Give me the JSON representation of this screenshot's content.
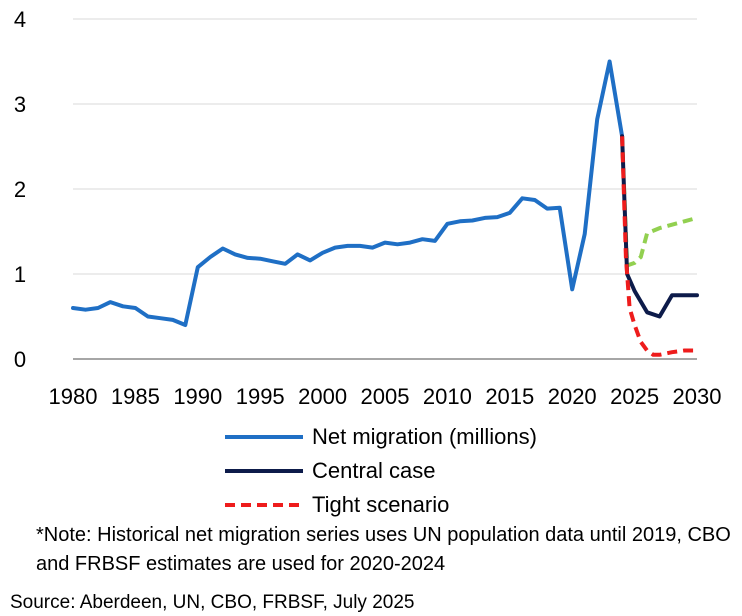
{
  "chart_data": {
    "type": "line",
    "title": "",
    "xlabel": "",
    "ylabel": "",
    "xlim": [
      1980,
      2030
    ],
    "ylim": [
      0,
      4
    ],
    "x_ticks": [
      "1980",
      "1985",
      "1990",
      "1995",
      "2000",
      "2005",
      "2010",
      "2015",
      "2020",
      "2025",
      "2030"
    ],
    "y_ticks": [
      "0",
      "1",
      "2",
      "3",
      "4"
    ],
    "grid": true,
    "legend_position": "bottom",
    "series": [
      {
        "name": "Net migration (millions)",
        "color": "#1F6FC5",
        "style": "solid",
        "x": [
          1980,
          1981,
          1982,
          1983,
          1984,
          1985,
          1986,
          1987,
          1988,
          1989,
          1990,
          1991,
          1992,
          1993,
          1994,
          1995,
          1996,
          1997,
          1998,
          1999,
          2000,
          2001,
          2002,
          2003,
          2004,
          2005,
          2006,
          2007,
          2008,
          2009,
          2010,
          2011,
          2012,
          2013,
          2014,
          2015,
          2016,
          2017,
          2018,
          2019,
          2020,
          2021,
          2022,
          2023,
          2024
        ],
        "values": [
          0.6,
          0.58,
          0.6,
          0.67,
          0.62,
          0.6,
          0.5,
          0.48,
          0.46,
          0.4,
          1.08,
          1.2,
          1.3,
          1.23,
          1.19,
          1.18,
          1.15,
          1.12,
          1.23,
          1.16,
          1.25,
          1.31,
          1.33,
          1.33,
          1.31,
          1.37,
          1.35,
          1.37,
          1.41,
          1.39,
          1.59,
          1.62,
          1.63,
          1.66,
          1.67,
          1.72,
          1.89,
          1.87,
          1.77,
          1.78,
          0.82,
          1.47,
          2.82,
          3.5,
          2.62
        ]
      },
      {
        "name": "Central case",
        "color": "#0D1B4A",
        "style": "solid",
        "x": [
          2024,
          2024.4,
          2025,
          2026,
          2027,
          2028,
          2029,
          2030
        ],
        "values": [
          2.62,
          1.0,
          0.8,
          0.55,
          0.5,
          0.75,
          0.75,
          0.75
        ]
      },
      {
        "name": "Tight scenario",
        "color": "#EE1C1C",
        "style": "dashed",
        "x": [
          2024,
          2024.3,
          2024.6,
          2025,
          2025.5,
          2026,
          2026.5,
          2027,
          2028,
          2029,
          2030
        ],
        "values": [
          2.62,
          1.2,
          0.6,
          0.4,
          0.2,
          0.1,
          0.05,
          0.05,
          0.08,
          0.1,
          0.1
        ]
      },
      {
        "name": "",
        "color": "#92D050",
        "style": "dashed",
        "x": [
          2024,
          2024.4,
          2025,
          2025.5,
          2026,
          2027,
          2028,
          2029,
          2030
        ],
        "values": [
          2.62,
          1.1,
          1.13,
          1.2,
          1.48,
          1.54,
          1.58,
          1.62,
          1.66
        ]
      }
    ]
  },
  "note": "*Note: Historical net migration series uses UN population data until 2019, CBO and FRBSF estimates are used for 2020-2024",
  "source": "Source: Aberdeen, UN, CBO, FRBSF, July 2025"
}
